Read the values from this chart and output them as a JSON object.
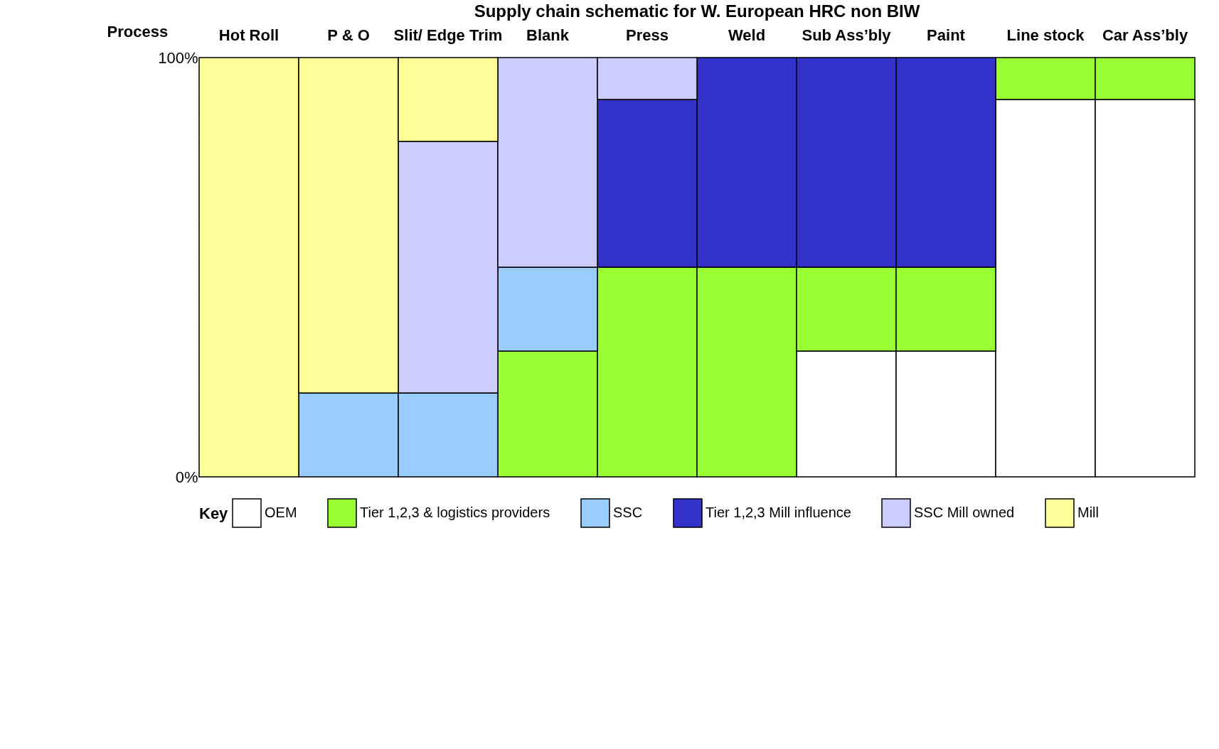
{
  "chart_data": {
    "type": "bar",
    "stacked": true,
    "title": "Supply chain schematic for W. European HRC non BIW",
    "xlabel": "Process",
    "legend_title": "Key",
    "legend": "bottom",
    "grid": "x",
    "categories": [
      "Hot Roll",
      "P & O",
      "Slit/ Edge Trim",
      "Blank",
      "Press",
      "Weld",
      "Sub Ass’bly",
      "Paint",
      "Line stock",
      "Car Ass’bly"
    ],
    "ylim": [
      0,
      100
    ],
    "yticks": [
      {
        "value": 0,
        "label": "0%"
      },
      {
        "value": 100,
        "label": "100%"
      }
    ],
    "series": [
      {
        "name": "OEM",
        "color": "#ffffff",
        "values": [
          0,
          0,
          0,
          0,
          0,
          0,
          30,
          30,
          90,
          90
        ]
      },
      {
        "name": "Tier 1,2,3 & logistics providers",
        "color": "#99ff33",
        "values": [
          0,
          0,
          0,
          30,
          50,
          50,
          20,
          20,
          10,
          10
        ]
      },
      {
        "name": "SSC",
        "color": "#99ccff",
        "values": [
          0,
          20,
          20,
          20,
          0,
          0,
          0,
          0,
          0,
          0
        ]
      },
      {
        "name": "Tier 1,2,3 Mill influence",
        "color": "#3333cc",
        "values": [
          0,
          0,
          0,
          0,
          40,
          50,
          50,
          50,
          0,
          0
        ]
      },
      {
        "name": "SSC Mill owned",
        "color": "#ccccff",
        "values": [
          0,
          0,
          60,
          50,
          10,
          0,
          0,
          0,
          0,
          0
        ]
      },
      {
        "name": "Mill",
        "color": "#ffff99",
        "values": [
          100,
          80,
          20,
          0,
          0,
          0,
          0,
          0,
          0,
          0
        ]
      }
    ]
  }
}
